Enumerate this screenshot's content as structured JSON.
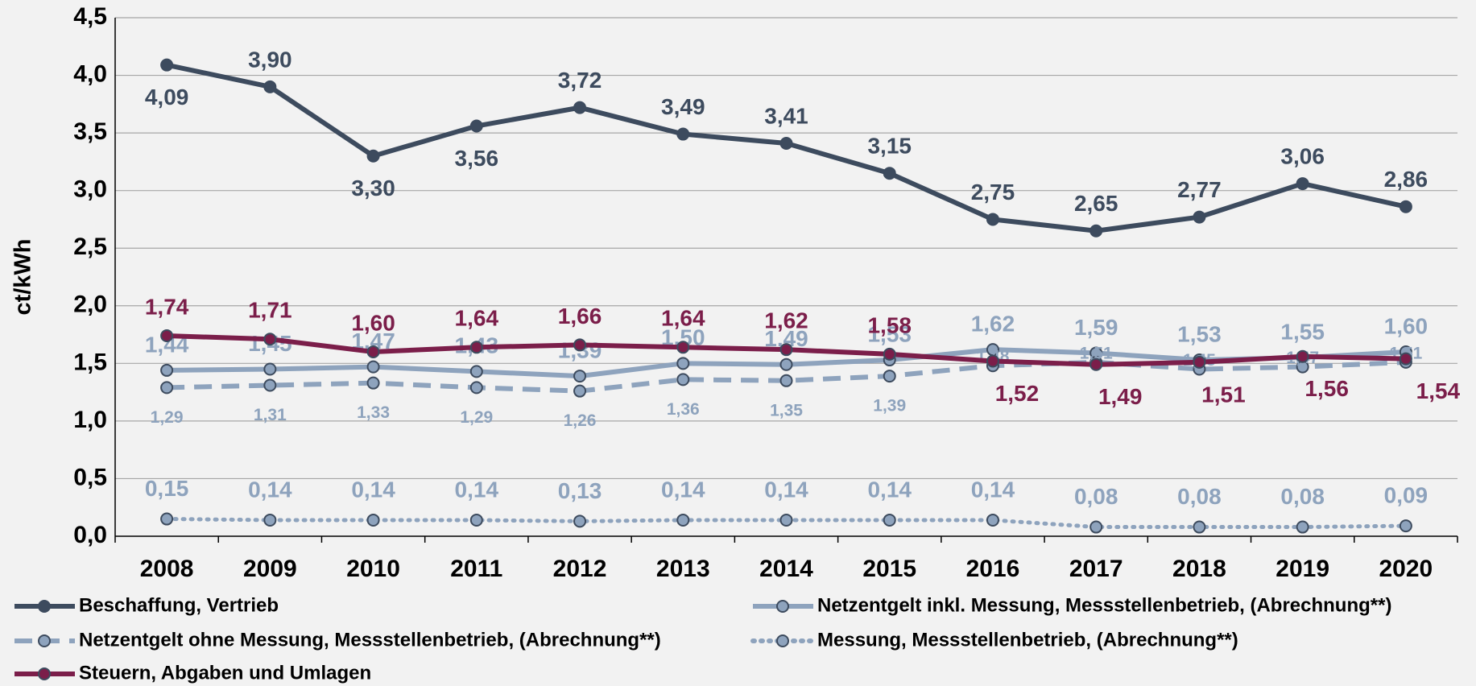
{
  "chart_data": {
    "type": "line",
    "y_label": "ct/kWh",
    "categories": [
      "2008",
      "2009",
      "2010",
      "2011",
      "2012",
      "2013",
      "2014",
      "2015",
      "2016",
      "2017",
      "2018",
      "2019",
      "2020"
    ],
    "ylim": [
      0,
      4.5
    ],
    "yticks": [
      {
        "value": 0,
        "label": "0,0"
      },
      {
        "value": 0.5,
        "label": "0,5"
      },
      {
        "value": 1,
        "label": "1,0"
      },
      {
        "value": 1.5,
        "label": "1,5"
      },
      {
        "value": 2,
        "label": "2,0"
      },
      {
        "value": 2.5,
        "label": "2,5"
      },
      {
        "value": 3,
        "label": "3,0"
      },
      {
        "value": 3.5,
        "label": "3,5"
      },
      {
        "value": 4,
        "label": "4,0"
      },
      {
        "value": 4.5,
        "label": "4,5"
      }
    ],
    "grid": true,
    "series": [
      {
        "name": "Beschaffung, Vertrieb",
        "color": "#3d4b5e",
        "style": "solid",
        "values": [
          4.09,
          3.9,
          3.3,
          3.56,
          3.72,
          3.49,
          3.41,
          3.15,
          2.75,
          2.65,
          2.77,
          3.06,
          2.86
        ],
        "value_labels": [
          "4,09",
          "3,90",
          "3,30",
          "3,56",
          "3,72",
          "3,49",
          "3,41",
          "3,15",
          "2,75",
          "2,65",
          "2,77",
          "3,06",
          "2,86"
        ]
      },
      {
        "name": "Netzentgelt inkl. Messung, Messstellenbetrieb, (Abrechnung**)",
        "color": "#8ea3bd",
        "style": "solid",
        "values": [
          1.44,
          1.45,
          1.47,
          1.43,
          1.39,
          1.5,
          1.49,
          1.53,
          1.62,
          1.59,
          1.53,
          1.55,
          1.6
        ],
        "value_labels": [
          "1,44",
          "1,45",
          "1,47",
          "1,43",
          "1,39",
          "1,50",
          "1,49",
          "1,53",
          "1,62",
          "1,59",
          "1,53",
          "1,55",
          "1,60"
        ]
      },
      {
        "name": "Netzentgelt ohne Messung, Messstellenbetrieb, (Abrechnung**)",
        "color": "#8ea3bd",
        "style": "dashed",
        "values": [
          1.29,
          1.31,
          1.33,
          1.29,
          1.26,
          1.36,
          1.35,
          1.39,
          1.48,
          1.51,
          1.45,
          1.47,
          1.51
        ],
        "value_labels": [
          "1,29",
          "1,31",
          "1,33",
          "1,29",
          "1,26",
          "1,36",
          "1,35",
          "1,39",
          "1,48",
          "1,51",
          "1,45",
          "1,47",
          "1,51"
        ]
      },
      {
        "name": "Messung, Messstellenbetrieb, (Abrechnung**)",
        "color": "#8ea3bd",
        "style": "dotted",
        "values": [
          0.15,
          0.14,
          0.14,
          0.14,
          0.13,
          0.14,
          0.14,
          0.14,
          0.14,
          0.08,
          0.08,
          0.08,
          0.09
        ],
        "value_labels": [
          "0,15",
          "0,14",
          "0,14",
          "0,14",
          "0,13",
          "0,14",
          "0,14",
          "0,14",
          "0,14",
          "0,08",
          "0,08",
          "0,08",
          "0,09"
        ]
      },
      {
        "name": "Steuern, Abgaben und Umlagen",
        "color": "#7b1e4a",
        "style": "solid",
        "values": [
          1.74,
          1.71,
          1.6,
          1.64,
          1.66,
          1.64,
          1.62,
          1.58,
          1.52,
          1.49,
          1.51,
          1.56,
          1.54
        ],
        "value_labels": [
          "1,74",
          "1,71",
          "1,60",
          "1,64",
          "1,66",
          "1,64",
          "1,62",
          "1,58",
          "1,52",
          "1,49",
          "1,51",
          "1,56",
          "1,54"
        ]
      }
    ]
  }
}
